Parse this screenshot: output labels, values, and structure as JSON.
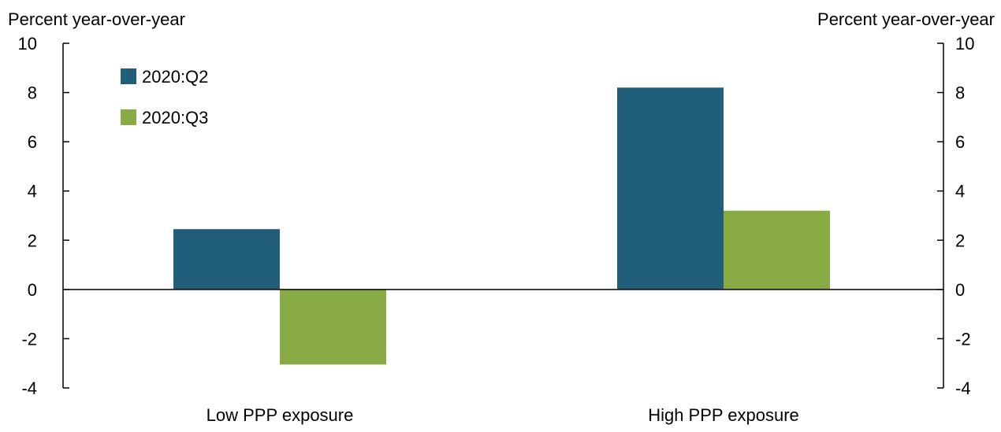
{
  "chart_data": {
    "type": "bar",
    "categories": [
      "Low PPP exposure",
      "High PPP exposure"
    ],
    "series": [
      {
        "name": "2020:Q2",
        "values": [
          2.45,
          8.2
        ],
        "color": "#215e79"
      },
      {
        "name": "2020:Q3",
        "values": [
          -3.05,
          3.2
        ],
        "color": "#89ab45"
      }
    ],
    "ylabel_left": "Percent year-over-year",
    "ylabel_right": "Percent year-over-year",
    "ylim": [
      -4,
      10
    ],
    "yticks": [
      -4,
      -2,
      0,
      2,
      4,
      6,
      8,
      10
    ],
    "grid": false,
    "legend_position": "top-left"
  }
}
